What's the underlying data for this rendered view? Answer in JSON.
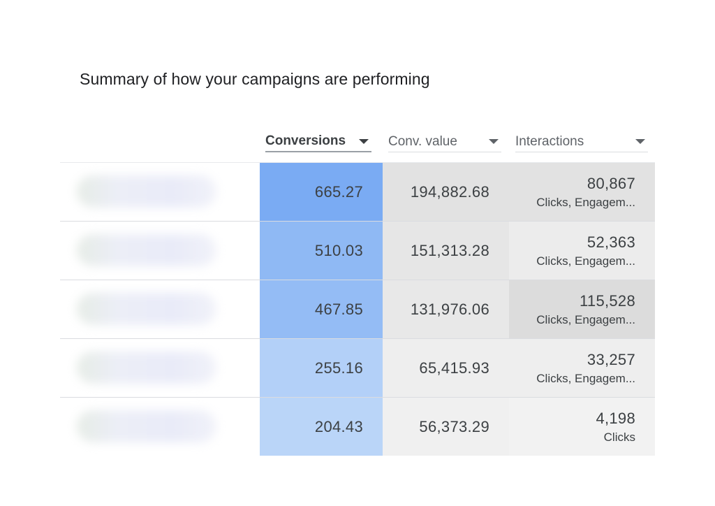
{
  "title": "Summary of how your campaigns are performing",
  "headers": {
    "conversions": "Conversions",
    "conv_value": "Conv. value",
    "interactions": "Interactions"
  },
  "rows": [
    {
      "conversions": "665.27",
      "conv_value": "194,882.68",
      "interactions": "80,867",
      "interaction_types": "Clicks, Engagem...",
      "colors": {
        "conv": "#7aabf3",
        "value": "#e2e2e2",
        "inter": "#e2e2e2"
      }
    },
    {
      "conversions": "510.03",
      "conv_value": "151,313.28",
      "interactions": "52,363",
      "interaction_types": "Clicks, Engagem...",
      "colors": {
        "conv": "#8fb9f4",
        "value": "#e6e6e6",
        "inter": "#ececec"
      }
    },
    {
      "conversions": "467.85",
      "conv_value": "131,976.06",
      "interactions": "115,528",
      "interaction_types": "Clicks, Engagem...",
      "colors": {
        "conv": "#94bcf5",
        "value": "#e8e8e8",
        "inter": "#dcdcdc"
      }
    },
    {
      "conversions": "255.16",
      "conv_value": "65,415.93",
      "interactions": "33,257",
      "interaction_types": "Clicks, Engagem...",
      "colors": {
        "conv": "#b3d0f8",
        "value": "#eeeeee",
        "inter": "#eeeeee"
      }
    },
    {
      "conversions": "204.43",
      "conv_value": "56,373.29",
      "interactions": "4,198",
      "interaction_types": "Clicks",
      "colors": {
        "conv": "#bad5f8",
        "value": "#f0f0f0",
        "inter": "#f2f2f2"
      }
    }
  ]
}
